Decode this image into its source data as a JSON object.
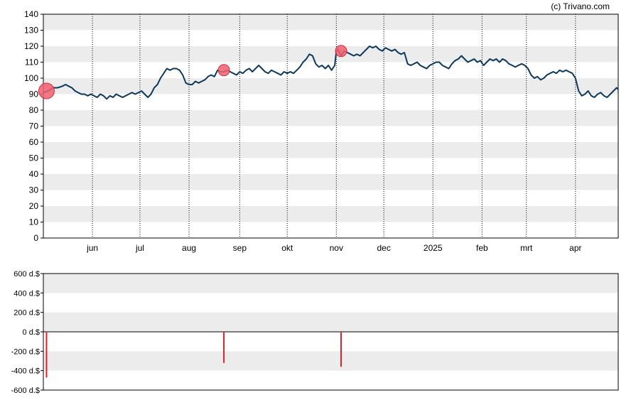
{
  "copyright": "(c) Trivano.com",
  "colors": {
    "line": "#0d3a5c",
    "band": "#ececec",
    "grid_vertical": "#000000",
    "marker_fill": "#f06070",
    "marker_stroke": "#d0303a",
    "volume_bar": "#e0202a",
    "axis": "#000000"
  },
  "chart_data": [
    {
      "type": "line",
      "title": "",
      "xlabel": "",
      "ylabel": "",
      "grid": true,
      "ylim": [
        0,
        140
      ],
      "y_ticks": [
        "0",
        "10",
        "20",
        "30",
        "40",
        "50",
        "60",
        "70",
        "80",
        "90",
        "100",
        "110",
        "120",
        "130",
        "140"
      ],
      "x_ticks": [
        {
          "label": "jun",
          "day": 31
        },
        {
          "label": "jul",
          "day": 61
        },
        {
          "label": "aug",
          "day": 92
        },
        {
          "label": "sep",
          "day": 124
        },
        {
          "label": "okt",
          "day": 154
        },
        {
          "label": "nov",
          "day": 185
        },
        {
          "label": "dec",
          "day": 215
        },
        {
          "label": "2025",
          "day": 246
        },
        {
          "label": "feb",
          "day": 277
        },
        {
          "label": "mrt",
          "day": 305
        },
        {
          "label": "apr",
          "day": 336
        }
      ],
      "x_range_days": [
        0,
        363
      ],
      "series": [
        {
          "points": [
            [
              0,
              91
            ],
            [
              3,
              92
            ],
            [
              6,
              94
            ],
            [
              9,
              94
            ],
            [
              12,
              95
            ],
            [
              14,
              96
            ],
            [
              16,
              95
            ],
            [
              18,
              94
            ],
            [
              20,
              92
            ],
            [
              22,
              91
            ],
            [
              24,
              90
            ],
            [
              26,
              90
            ],
            [
              28,
              89
            ],
            [
              30,
              90
            ],
            [
              32,
              89
            ],
            [
              34,
              88
            ],
            [
              36,
              90
            ],
            [
              38,
              89
            ],
            [
              40,
              87
            ],
            [
              42,
              89
            ],
            [
              44,
              88
            ],
            [
              46,
              90
            ],
            [
              48,
              89
            ],
            [
              50,
              88
            ],
            [
              52,
              89
            ],
            [
              54,
              90
            ],
            [
              56,
              91
            ],
            [
              58,
              90
            ],
            [
              60,
              91
            ],
            [
              62,
              92
            ],
            [
              64,
              90
            ],
            [
              66,
              88
            ],
            [
              68,
              90
            ],
            [
              70,
              94
            ],
            [
              72,
              96
            ],
            [
              74,
              100
            ],
            [
              76,
              103
            ],
            [
              78,
              106
            ],
            [
              80,
              105
            ],
            [
              82,
              106
            ],
            [
              84,
              106
            ],
            [
              86,
              105
            ],
            [
              88,
              102
            ],
            [
              90,
              97
            ],
            [
              92,
              96
            ],
            [
              94,
              96
            ],
            [
              96,
              98
            ],
            [
              98,
              97
            ],
            [
              100,
              98
            ],
            [
              102,
              99
            ],
            [
              104,
              101
            ],
            [
              106,
              102
            ],
            [
              108,
              101
            ],
            [
              110,
              105
            ],
            [
              112,
              104
            ],
            [
              114,
              104
            ],
            [
              116,
              105
            ],
            [
              118,
              104
            ],
            [
              120,
              103
            ],
            [
              122,
              102
            ],
            [
              124,
              104
            ],
            [
              126,
              103
            ],
            [
              128,
              105
            ],
            [
              130,
              106
            ],
            [
              132,
              104
            ],
            [
              134,
              106
            ],
            [
              136,
              108
            ],
            [
              138,
              106
            ],
            [
              140,
              104
            ],
            [
              142,
              103
            ],
            [
              144,
              105
            ],
            [
              146,
              104
            ],
            [
              148,
              103
            ],
            [
              150,
              102
            ],
            [
              152,
              104
            ],
            [
              154,
              103
            ],
            [
              156,
              104
            ],
            [
              158,
              103
            ],
            [
              160,
              105
            ],
            [
              162,
              107
            ],
            [
              164,
              110
            ],
            [
              166,
              112
            ],
            [
              168,
              115
            ],
            [
              170,
              114
            ],
            [
              172,
              109
            ],
            [
              174,
              107
            ],
            [
              176,
              108
            ],
            [
              178,
              106
            ],
            [
              180,
              108
            ],
            [
              182,
              105
            ],
            [
              184,
              108
            ],
            [
              185,
              117
            ],
            [
              186,
              118
            ],
            [
              188,
              114
            ],
            [
              190,
              117
            ],
            [
              192,
              116
            ],
            [
              194,
              115
            ],
            [
              196,
              114
            ],
            [
              198,
              115
            ],
            [
              200,
              114
            ],
            [
              202,
              116
            ],
            [
              204,
              118
            ],
            [
              206,
              120
            ],
            [
              208,
              119
            ],
            [
              210,
              120
            ],
            [
              212,
              118
            ],
            [
              214,
              117
            ],
            [
              216,
              119
            ],
            [
              218,
              118
            ],
            [
              220,
              117
            ],
            [
              222,
              118
            ],
            [
              224,
              116
            ],
            [
              226,
              115
            ],
            [
              228,
              116
            ],
            [
              230,
              109
            ],
            [
              232,
              108
            ],
            [
              234,
              109
            ],
            [
              236,
              110
            ],
            [
              238,
              108
            ],
            [
              240,
              107
            ],
            [
              242,
              106
            ],
            [
              244,
              108
            ],
            [
              246,
              109
            ],
            [
              248,
              110
            ],
            [
              250,
              110
            ],
            [
              252,
              108
            ],
            [
              254,
              107
            ],
            [
              256,
              106
            ],
            [
              258,
              109
            ],
            [
              260,
              111
            ],
            [
              262,
              112
            ],
            [
              264,
              114
            ],
            [
              266,
              112
            ],
            [
              268,
              110
            ],
            [
              270,
              111
            ],
            [
              272,
              112
            ],
            [
              274,
              110
            ],
            [
              276,
              111
            ],
            [
              278,
              108
            ],
            [
              280,
              110
            ],
            [
              282,
              112
            ],
            [
              284,
              111
            ],
            [
              286,
              112
            ],
            [
              288,
              110
            ],
            [
              290,
              112
            ],
            [
              292,
              111
            ],
            [
              294,
              109
            ],
            [
              296,
              108
            ],
            [
              298,
              107
            ],
            [
              300,
              108
            ],
            [
              302,
              109
            ],
            [
              304,
              108
            ],
            [
              306,
              106
            ],
            [
              308,
              102
            ],
            [
              310,
              100
            ],
            [
              312,
              101
            ],
            [
              314,
              99
            ],
            [
              316,
              100
            ],
            [
              318,
              102
            ],
            [
              320,
              103
            ],
            [
              322,
              104
            ],
            [
              324,
              103
            ],
            [
              326,
              105
            ],
            [
              328,
              104
            ],
            [
              330,
              105
            ],
            [
              332,
              104
            ],
            [
              334,
              103
            ],
            [
              336,
              100
            ],
            [
              338,
              92
            ],
            [
              340,
              89
            ],
            [
              342,
              90
            ],
            [
              344,
              92
            ],
            [
              346,
              89
            ],
            [
              348,
              88
            ],
            [
              350,
              90
            ],
            [
              352,
              91
            ],
            [
              354,
              89
            ],
            [
              356,
              88
            ],
            [
              358,
              90
            ],
            [
              360,
              92
            ],
            [
              362,
              94
            ],
            [
              363,
              93
            ]
          ]
        }
      ],
      "markers": [
        {
          "day": 2,
          "value": 92,
          "size": "large"
        },
        {
          "day": 114,
          "value": 105,
          "size": "small"
        },
        {
          "day": 188,
          "value": 117,
          "size": "small"
        }
      ]
    },
    {
      "type": "bar",
      "title": "",
      "xlabel": "",
      "ylabel": "",
      "grid": true,
      "ylim": [
        -600,
        600
      ],
      "y_ticks": [
        "600 d.$",
        "400 d.$",
        "200 d.$",
        "0 d.$",
        "-200 d.$",
        "-400 d.$",
        "-600 d.$"
      ],
      "x_range_days": [
        0,
        363
      ],
      "bars": [
        {
          "day": 2,
          "value": -470
        },
        {
          "day": 114,
          "value": -320
        },
        {
          "day": 188,
          "value": -360
        }
      ]
    }
  ]
}
